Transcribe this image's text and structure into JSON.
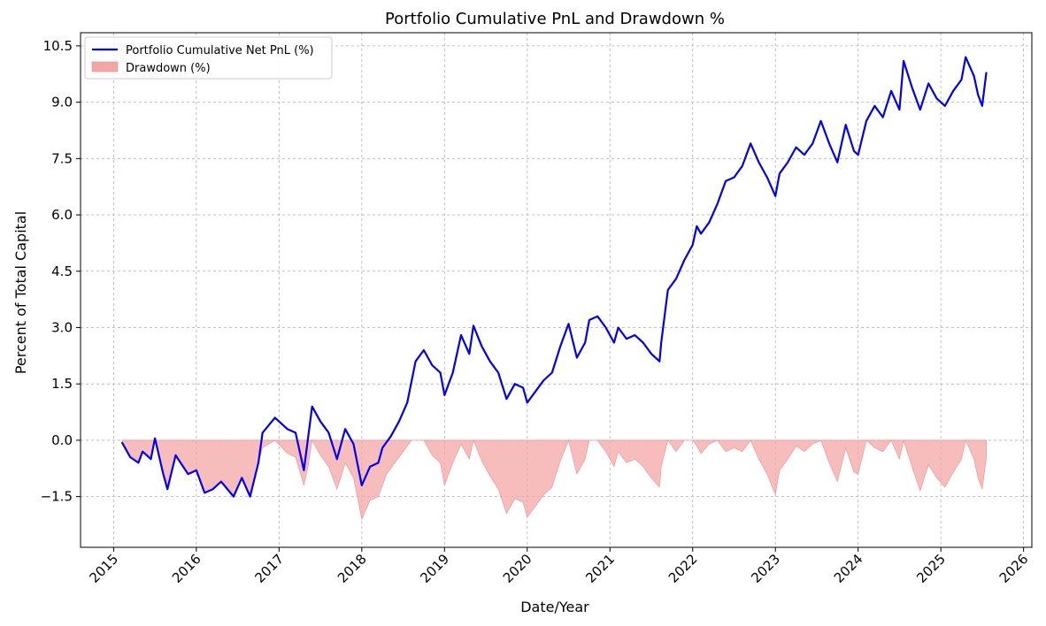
{
  "chart_data": {
    "type": "line",
    "title": "Portfolio Cumulative PnL and Drawdown %",
    "xlabel": "Date/Year",
    "ylabel": "Percent of Total Capital",
    "xlim": [
      2014.6,
      2026.1
    ],
    "ylim": [
      -2.85,
      10.85
    ],
    "x_ticks": [
      2015,
      2016,
      2017,
      2018,
      2019,
      2020,
      2021,
      2022,
      2023,
      2024,
      2025,
      2026
    ],
    "x_tick_labels": [
      "2015",
      "2016",
      "2017",
      "2018",
      "2019",
      "2020",
      "2021",
      "2022",
      "2023",
      "2024",
      "2025",
      "2026"
    ],
    "y_ticks": [
      -1.5,
      0.0,
      1.5,
      3.0,
      4.5,
      6.0,
      7.5,
      9.0,
      10.5
    ],
    "y_tick_labels": [
      "−1.5",
      "0.0",
      "1.5",
      "3.0",
      "4.5",
      "6.0",
      "7.5",
      "9.0",
      "10.5"
    ],
    "grid": true,
    "legend_position": "top-left",
    "series": [
      {
        "name": "Portfolio Cumulative Net PnL (%)",
        "kind": "line",
        "color": "#0000ee",
        "points": [
          [
            2015.1,
            -0.05
          ],
          [
            2015.2,
            -0.45
          ],
          [
            2015.3,
            -0.6
          ],
          [
            2015.35,
            -0.3
          ],
          [
            2015.45,
            -0.5
          ],
          [
            2015.5,
            0.05
          ],
          [
            2015.6,
            -0.9
          ],
          [
            2015.65,
            -1.3
          ],
          [
            2015.75,
            -0.4
          ],
          [
            2015.9,
            -0.9
          ],
          [
            2016.0,
            -0.8
          ],
          [
            2016.1,
            -1.4
          ],
          [
            2016.2,
            -1.3
          ],
          [
            2016.3,
            -1.1
          ],
          [
            2016.45,
            -1.5
          ],
          [
            2016.55,
            -1.0
          ],
          [
            2016.65,
            -1.5
          ],
          [
            2016.75,
            -0.6
          ],
          [
            2016.8,
            0.2
          ],
          [
            2016.95,
            0.6
          ],
          [
            2017.1,
            0.3
          ],
          [
            2017.2,
            0.2
          ],
          [
            2017.3,
            -0.8
          ],
          [
            2017.4,
            0.9
          ],
          [
            2017.5,
            0.5
          ],
          [
            2017.6,
            0.2
          ],
          [
            2017.7,
            -0.5
          ],
          [
            2017.8,
            0.3
          ],
          [
            2017.9,
            -0.1
          ],
          [
            2018.0,
            -1.2
          ],
          [
            2018.1,
            -0.7
          ],
          [
            2018.2,
            -0.6
          ],
          [
            2018.25,
            -0.2
          ],
          [
            2018.35,
            0.1
          ],
          [
            2018.45,
            0.5
          ],
          [
            2018.55,
            1.0
          ],
          [
            2018.65,
            2.1
          ],
          [
            2018.75,
            2.4
          ],
          [
            2018.85,
            2.0
          ],
          [
            2018.95,
            1.8
          ],
          [
            2019.0,
            1.2
          ],
          [
            2019.1,
            1.8
          ],
          [
            2019.2,
            2.8
          ],
          [
            2019.3,
            2.3
          ],
          [
            2019.35,
            3.05
          ],
          [
            2019.45,
            2.5
          ],
          [
            2019.55,
            2.1
          ],
          [
            2019.65,
            1.8
          ],
          [
            2019.75,
            1.1
          ],
          [
            2019.85,
            1.5
          ],
          [
            2019.95,
            1.4
          ],
          [
            2020.0,
            1.0
          ],
          [
            2020.1,
            1.3
          ],
          [
            2020.2,
            1.6
          ],
          [
            2020.3,
            1.8
          ],
          [
            2020.4,
            2.5
          ],
          [
            2020.5,
            3.1
          ],
          [
            2020.6,
            2.2
          ],
          [
            2020.7,
            2.6
          ],
          [
            2020.75,
            3.2
          ],
          [
            2020.85,
            3.3
          ],
          [
            2020.95,
            3.0
          ],
          [
            2021.05,
            2.6
          ],
          [
            2021.1,
            3.0
          ],
          [
            2021.2,
            2.7
          ],
          [
            2021.3,
            2.8
          ],
          [
            2021.4,
            2.6
          ],
          [
            2021.5,
            2.3
          ],
          [
            2021.6,
            2.1
          ],
          [
            2021.62,
            2.6
          ],
          [
            2021.7,
            4.0
          ],
          [
            2021.8,
            4.3
          ],
          [
            2021.9,
            4.8
          ],
          [
            2022.0,
            5.2
          ],
          [
            2022.05,
            5.7
          ],
          [
            2022.1,
            5.5
          ],
          [
            2022.2,
            5.8
          ],
          [
            2022.3,
            6.3
          ],
          [
            2022.4,
            6.9
          ],
          [
            2022.5,
            7.0
          ],
          [
            2022.6,
            7.3
          ],
          [
            2022.7,
            7.9
          ],
          [
            2022.8,
            7.4
          ],
          [
            2022.9,
            7.0
          ],
          [
            2023.0,
            6.5
          ],
          [
            2023.05,
            7.1
          ],
          [
            2023.15,
            7.4
          ],
          [
            2023.25,
            7.8
          ],
          [
            2023.35,
            7.6
          ],
          [
            2023.45,
            7.9
          ],
          [
            2023.55,
            8.5
          ],
          [
            2023.65,
            7.9
          ],
          [
            2023.75,
            7.4
          ],
          [
            2023.85,
            8.4
          ],
          [
            2023.95,
            7.7
          ],
          [
            2024.0,
            7.6
          ],
          [
            2024.1,
            8.5
          ],
          [
            2024.2,
            8.9
          ],
          [
            2024.3,
            8.6
          ],
          [
            2024.4,
            9.3
          ],
          [
            2024.5,
            8.8
          ],
          [
            2024.55,
            10.1
          ],
          [
            2024.65,
            9.4
          ],
          [
            2024.75,
            8.8
          ],
          [
            2024.85,
            9.5
          ],
          [
            2024.95,
            9.1
          ],
          [
            2025.05,
            8.9
          ],
          [
            2025.15,
            9.3
          ],
          [
            2025.25,
            9.6
          ],
          [
            2025.3,
            10.2
          ],
          [
            2025.4,
            9.7
          ],
          [
            2025.45,
            9.2
          ],
          [
            2025.5,
            8.9
          ],
          [
            2025.55,
            9.8
          ]
        ]
      },
      {
        "name": "Drawdown (%)",
        "kind": "area",
        "color": "#f08080",
        "points": [
          [
            2015.1,
            0.0
          ],
          [
            2015.2,
            -0.4
          ],
          [
            2015.3,
            -0.55
          ],
          [
            2015.35,
            -0.3
          ],
          [
            2015.45,
            -0.5
          ],
          [
            2015.5,
            0.0
          ],
          [
            2015.6,
            -0.9
          ],
          [
            2015.65,
            -1.3
          ],
          [
            2015.75,
            -0.45
          ],
          [
            2015.9,
            -0.9
          ],
          [
            2016.0,
            -0.8
          ],
          [
            2016.1,
            -1.4
          ],
          [
            2016.2,
            -1.3
          ],
          [
            2016.3,
            -1.1
          ],
          [
            2016.45,
            -1.5
          ],
          [
            2016.55,
            -1.0
          ],
          [
            2016.65,
            -1.5
          ],
          [
            2016.75,
            -0.6
          ],
          [
            2016.8,
            -0.2
          ],
          [
            2016.95,
            0.0
          ],
          [
            2017.1,
            -0.35
          ],
          [
            2017.2,
            -0.45
          ],
          [
            2017.3,
            -1.2
          ],
          [
            2017.35,
            -0.7
          ],
          [
            2017.4,
            0.0
          ],
          [
            2017.5,
            -0.4
          ],
          [
            2017.6,
            -0.7
          ],
          [
            2017.7,
            -1.3
          ],
          [
            2017.8,
            -0.6
          ],
          [
            2017.9,
            -1.0
          ],
          [
            2018.0,
            -2.1
          ],
          [
            2018.1,
            -1.6
          ],
          [
            2018.2,
            -1.5
          ],
          [
            2018.3,
            -0.9
          ],
          [
            2018.4,
            -0.6
          ],
          [
            2018.5,
            -0.3
          ],
          [
            2018.6,
            0.0
          ],
          [
            2018.75,
            0.0
          ],
          [
            2018.85,
            -0.4
          ],
          [
            2018.95,
            -0.6
          ],
          [
            2019.0,
            -1.2
          ],
          [
            2019.1,
            -0.6
          ],
          [
            2019.2,
            -0.1
          ],
          [
            2019.3,
            -0.5
          ],
          [
            2019.35,
            0.0
          ],
          [
            2019.45,
            -0.55
          ],
          [
            2019.55,
            -0.95
          ],
          [
            2019.65,
            -1.3
          ],
          [
            2019.75,
            -1.95
          ],
          [
            2019.85,
            -1.55
          ],
          [
            2019.95,
            -1.65
          ],
          [
            2020.0,
            -2.05
          ],
          [
            2020.1,
            -1.75
          ],
          [
            2020.2,
            -1.45
          ],
          [
            2020.3,
            -1.25
          ],
          [
            2020.4,
            -0.55
          ],
          [
            2020.5,
            0.0
          ],
          [
            2020.6,
            -0.9
          ],
          [
            2020.7,
            -0.5
          ],
          [
            2020.75,
            0.0
          ],
          [
            2020.85,
            0.0
          ],
          [
            2020.95,
            -0.3
          ],
          [
            2021.05,
            -0.7
          ],
          [
            2021.1,
            -0.3
          ],
          [
            2021.2,
            -0.6
          ],
          [
            2021.3,
            -0.5
          ],
          [
            2021.4,
            -0.7
          ],
          [
            2021.5,
            -1.0
          ],
          [
            2021.6,
            -1.25
          ],
          [
            2021.62,
            -0.7
          ],
          [
            2021.7,
            0.0
          ],
          [
            2021.8,
            -0.3
          ],
          [
            2021.9,
            0.0
          ],
          [
            2022.0,
            0.0
          ],
          [
            2022.05,
            -0.15
          ],
          [
            2022.1,
            -0.35
          ],
          [
            2022.2,
            -0.1
          ],
          [
            2022.3,
            0.0
          ],
          [
            2022.4,
            -0.3
          ],
          [
            2022.5,
            -0.2
          ],
          [
            2022.6,
            -0.3
          ],
          [
            2022.7,
            0.0
          ],
          [
            2022.8,
            -0.5
          ],
          [
            2022.9,
            -0.9
          ],
          [
            2023.0,
            -1.45
          ],
          [
            2023.05,
            -0.8
          ],
          [
            2023.15,
            -0.5
          ],
          [
            2023.25,
            -0.15
          ],
          [
            2023.35,
            -0.3
          ],
          [
            2023.45,
            -0.1
          ],
          [
            2023.55,
            0.0
          ],
          [
            2023.65,
            -0.6
          ],
          [
            2023.75,
            -1.1
          ],
          [
            2023.85,
            -0.2
          ],
          [
            2023.95,
            -0.85
          ],
          [
            2024.0,
            -0.9
          ],
          [
            2024.1,
            0.0
          ],
          [
            2024.2,
            -0.2
          ],
          [
            2024.3,
            -0.3
          ],
          [
            2024.4,
            0.0
          ],
          [
            2024.5,
            -0.5
          ],
          [
            2024.55,
            0.0
          ],
          [
            2024.65,
            -0.7
          ],
          [
            2024.75,
            -1.35
          ],
          [
            2024.85,
            -0.65
          ],
          [
            2024.95,
            -1.0
          ],
          [
            2025.05,
            -1.25
          ],
          [
            2025.15,
            -0.85
          ],
          [
            2025.25,
            -0.5
          ],
          [
            2025.3,
            0.0
          ],
          [
            2025.4,
            -0.5
          ],
          [
            2025.45,
            -1.0
          ],
          [
            2025.5,
            -1.3
          ],
          [
            2025.55,
            -0.45
          ]
        ]
      }
    ]
  }
}
